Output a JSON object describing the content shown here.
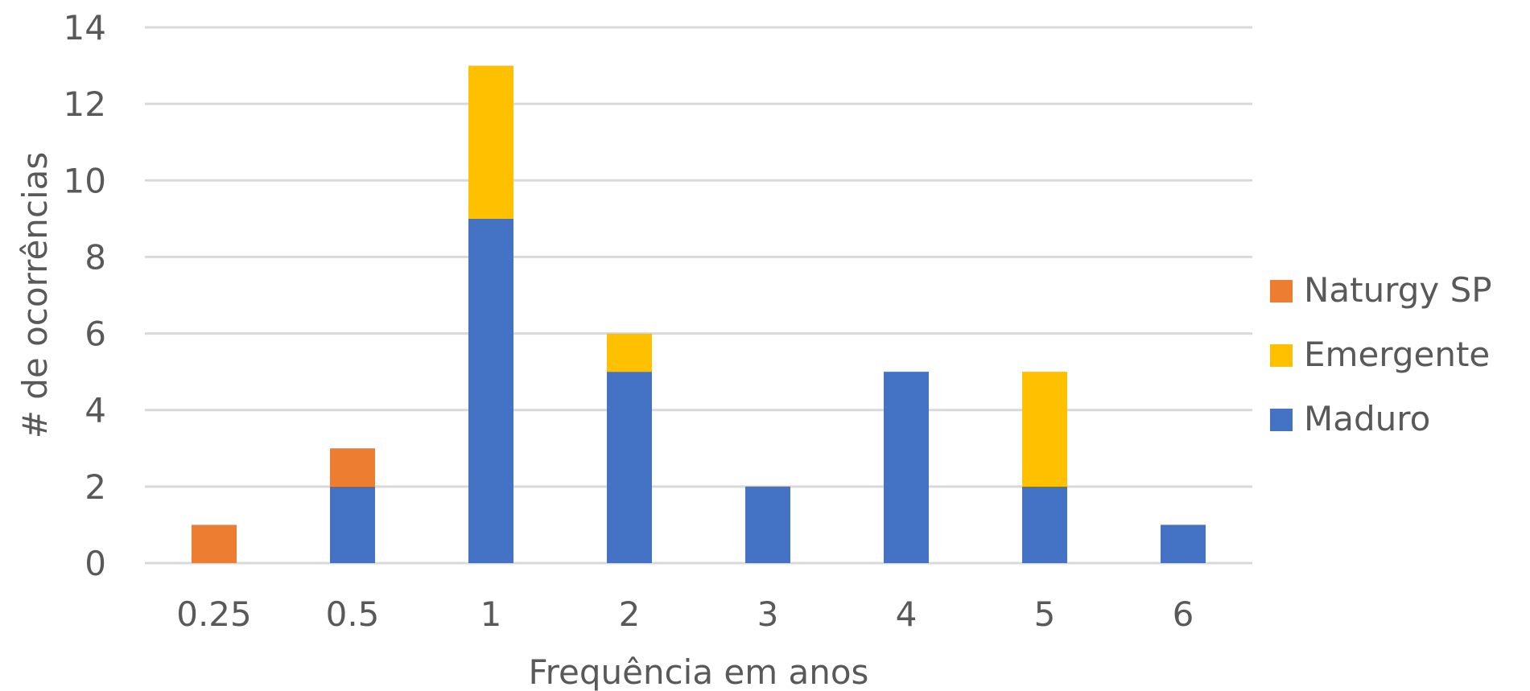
{
  "chart_data": {
    "type": "bar",
    "stacked": true,
    "categories": [
      "0.25",
      "0.5",
      "1",
      "2",
      "3",
      "4",
      "5",
      "6"
    ],
    "series": [
      {
        "name": "Maduro",
        "color": "#4472C4",
        "values": [
          0,
          2,
          9,
          5,
          2,
          5,
          2,
          1
        ]
      },
      {
        "name": "Emergente",
        "color": "#FFC000",
        "values": [
          0,
          0,
          4,
          1,
          0,
          0,
          3,
          0
        ]
      },
      {
        "name": "Naturgy SP",
        "color": "#ED7D31",
        "values": [
          1,
          1,
          0,
          0,
          0,
          0,
          0,
          0
        ]
      }
    ],
    "legend_order": [
      "Naturgy SP",
      "Emergente",
      "Maduro"
    ],
    "xlabel": "Frequência em anos",
    "ylabel": "# de ocorrências",
    "ylim": [
      0,
      14
    ],
    "yticks": [
      "0",
      "2",
      "4",
      "6",
      "8",
      "10",
      "12",
      "14"
    ],
    "grid": true,
    "legend_position": "right"
  }
}
